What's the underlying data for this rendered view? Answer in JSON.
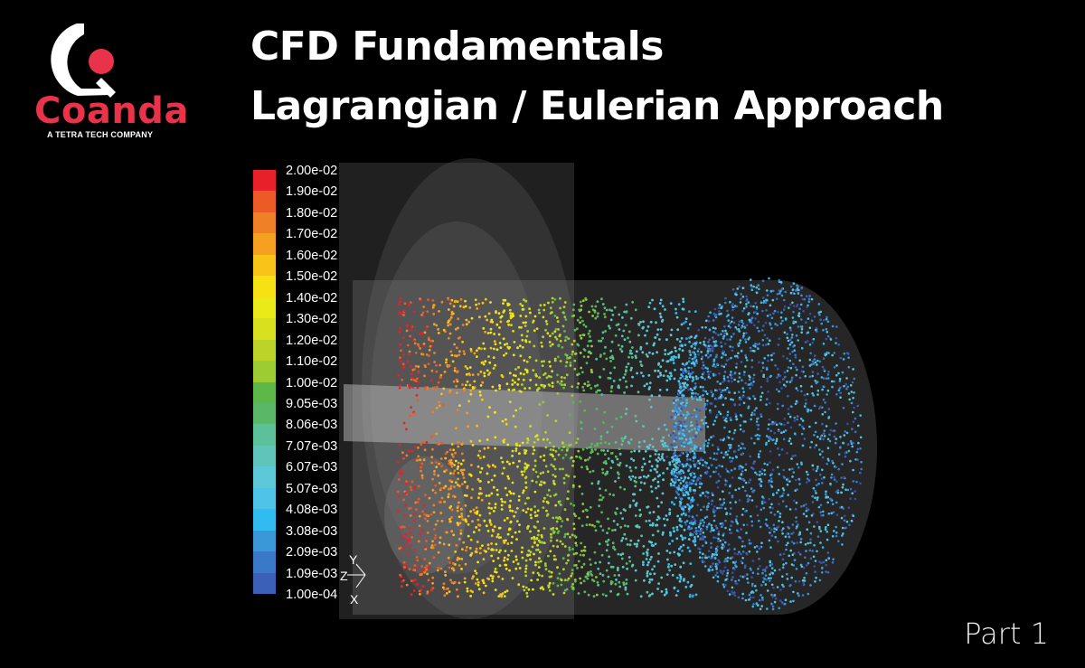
{
  "logo": {
    "name": "Coanda",
    "tagline": "A TETRA TECH COMPANY",
    "brand_color": "#e8334a"
  },
  "title": {
    "line1": "CFD Fundamentals",
    "line2": "Lagrangian / Eulerian Approach"
  },
  "colorbar": {
    "labels": [
      "2.00e-02",
      "1.90e-02",
      "1.80e-02",
      "1.70e-02",
      "1.60e-02",
      "1.50e-02",
      "1.40e-02",
      "1.30e-02",
      "1.20e-02",
      "1.10e-02",
      "1.00e-02",
      "9.05e-03",
      "8.06e-03",
      "7.07e-03",
      "6.07e-03",
      "5.07e-03",
      "4.08e-03",
      "3.08e-03",
      "2.09e-03",
      "1.09e-03",
      "1.00e-04"
    ],
    "colors": [
      "#e8202a",
      "#ec5a26",
      "#f08028",
      "#f5a020",
      "#f8c418",
      "#f6e214",
      "#eaea18",
      "#d8e020",
      "#bcd42a",
      "#9ccb34",
      "#5cb848",
      "#58b868",
      "#5cc09a",
      "#5ec4bc",
      "#5cc8d8",
      "#50c4e8",
      "#30bcf0",
      "#3a98d8",
      "#3a78c8",
      "#3a60b8",
      "#3a4ca8"
    ]
  },
  "axes": {
    "y": "Y",
    "z": "Z",
    "x": "X"
  },
  "footer": {
    "part": "Part 1"
  }
}
